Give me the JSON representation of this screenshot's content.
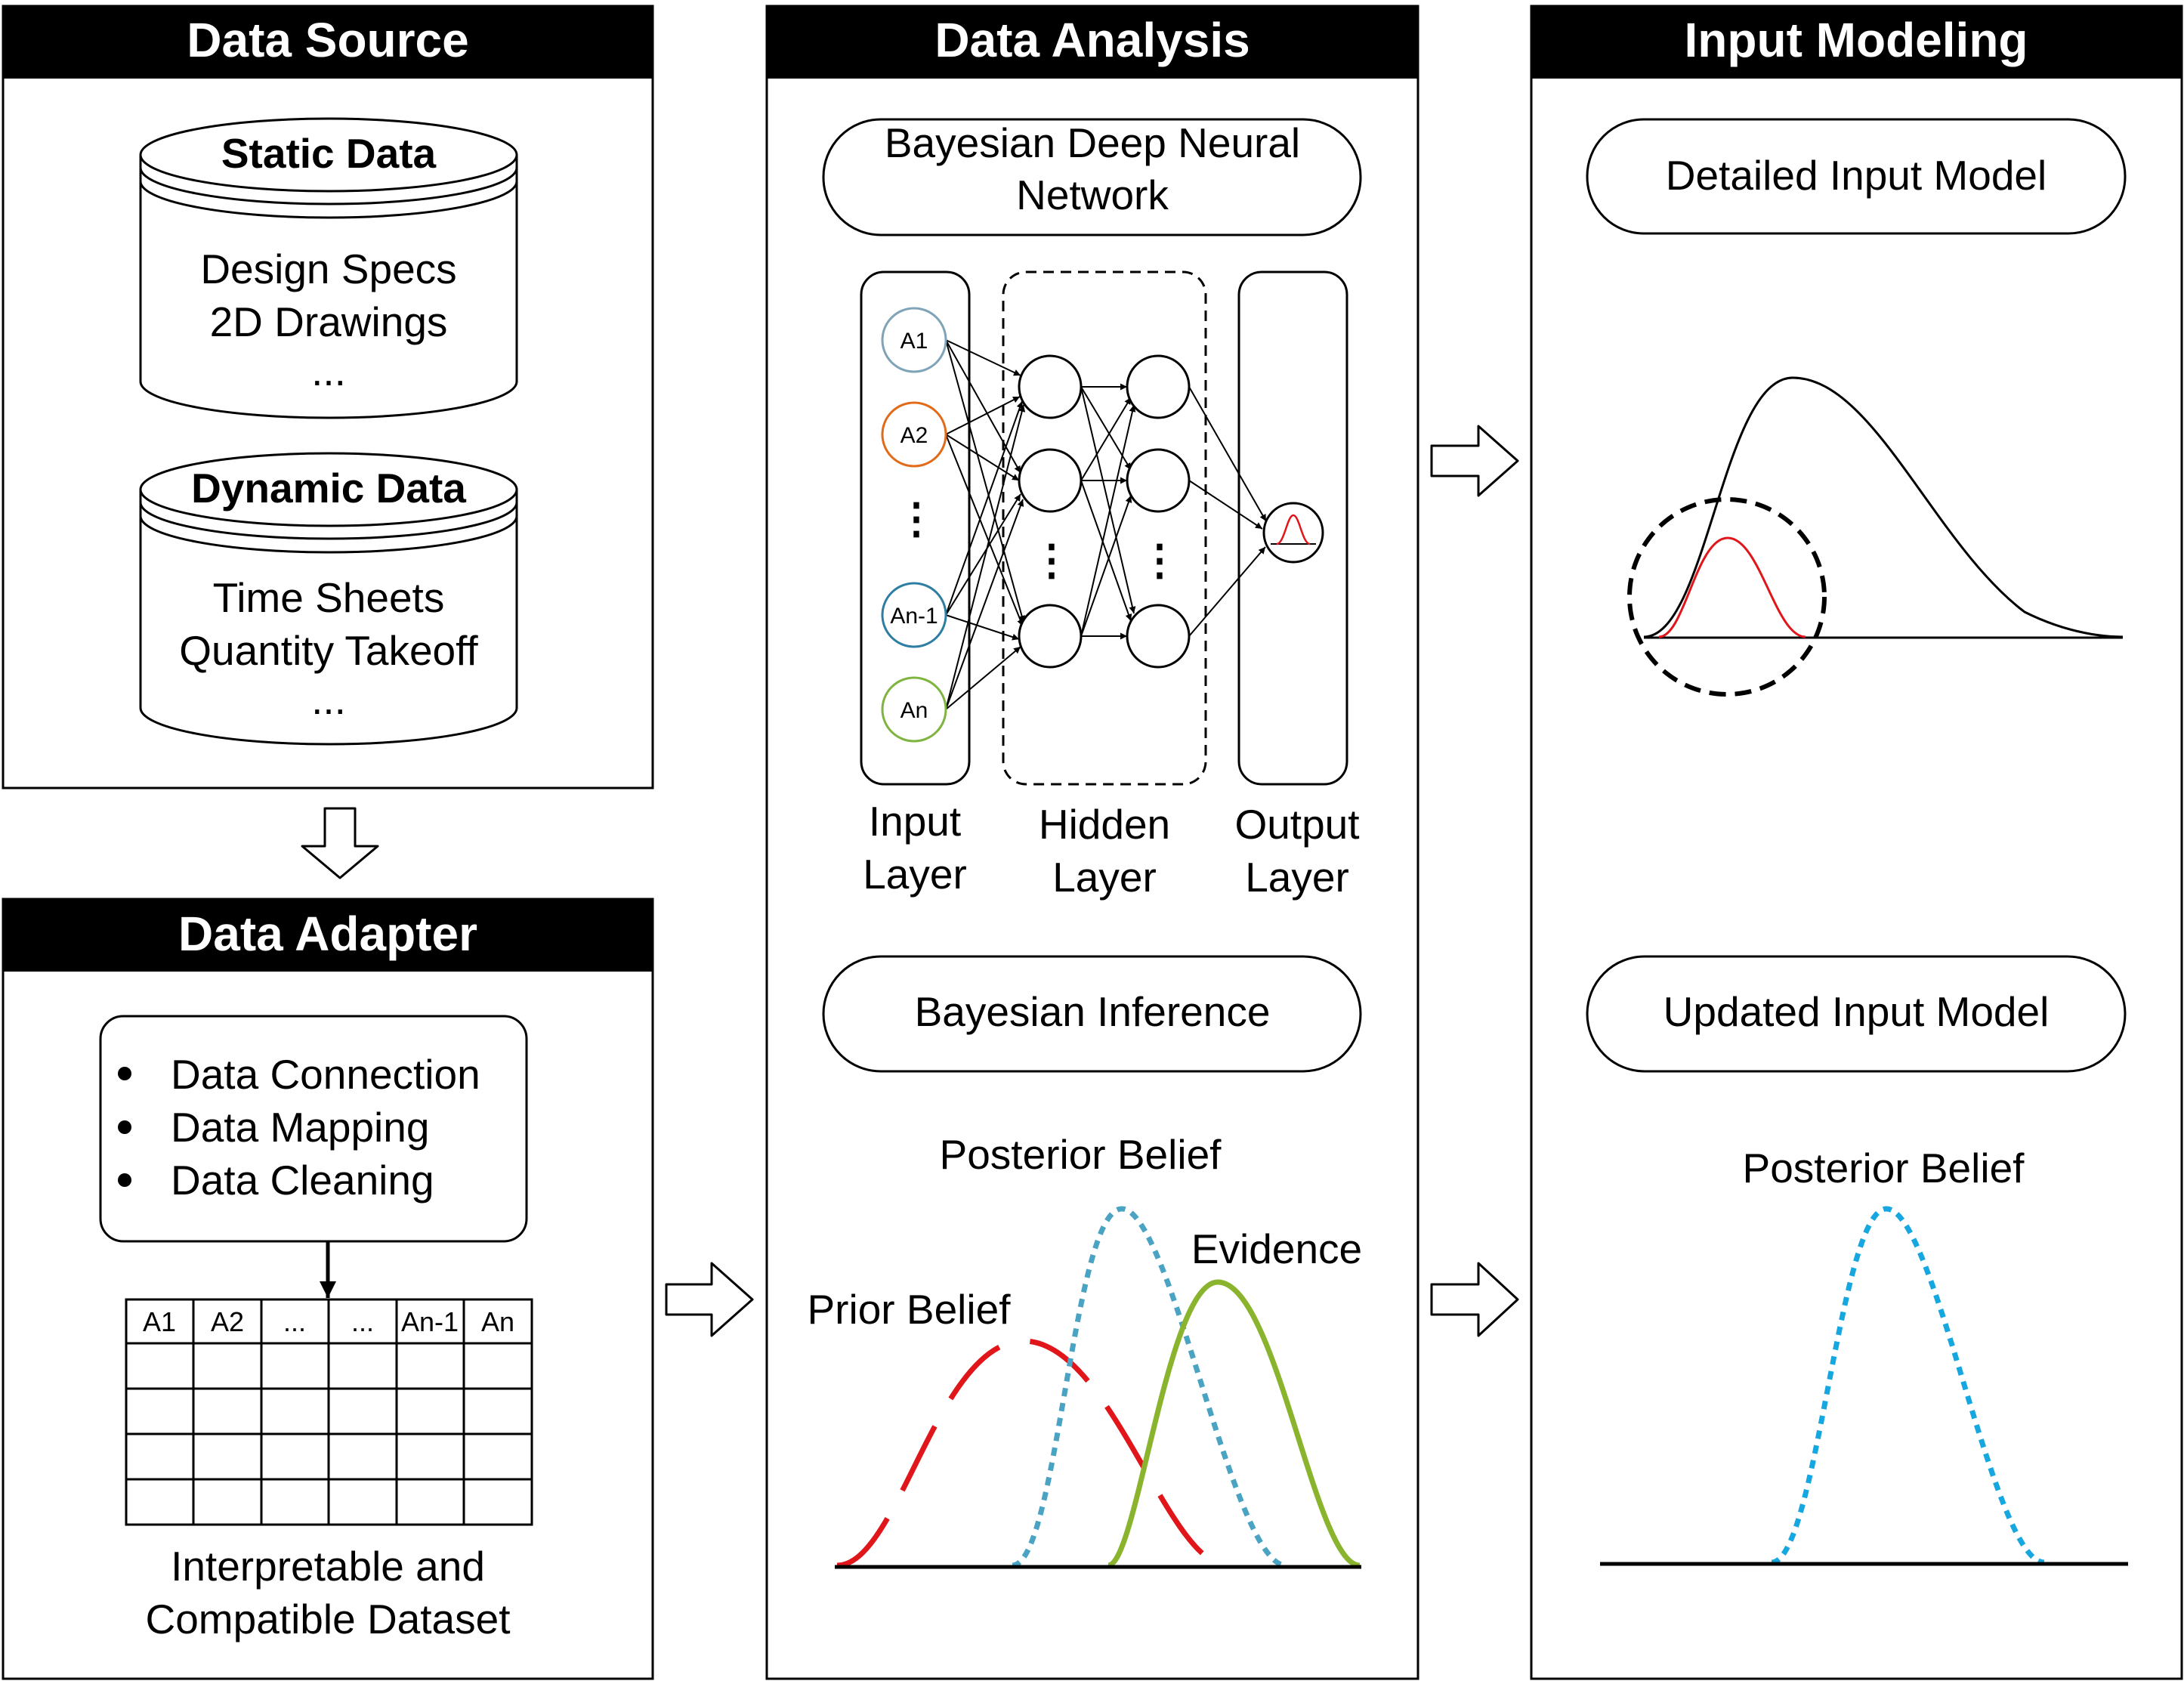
{
  "panels": {
    "data_source": {
      "title": "Data Source",
      "static_db": {
        "title": "Static Data",
        "items": [
          "Design Specs",
          "2D Drawings",
          "..."
        ]
      },
      "dynamic_db": {
        "title": "Dynamic Data",
        "items": [
          "Time Sheets",
          "Quantity Takeoff",
          "..."
        ]
      }
    },
    "data_adapter": {
      "title": "Data Adapter",
      "bullets": [
        "Data Connection",
        "Data Mapping",
        "Data Cleaning"
      ],
      "table_headers": [
        "A1",
        "A2",
        "...",
        "...",
        "An-1",
        "An"
      ],
      "caption": [
        "Interpretable and",
        "Compatible Dataset"
      ]
    },
    "data_analysis": {
      "title": "Data Analysis",
      "bdnn_box": [
        "Bayesian Deep Neural",
        "Network"
      ],
      "input_nodes": [
        "A1",
        "A2",
        "An-1",
        "An"
      ],
      "vdots": "⋮",
      "layers": {
        "input": [
          "Input",
          "Layer"
        ],
        "hidden": [
          "Hidden",
          "Layer"
        ],
        "output": [
          "Output",
          "Layer"
        ]
      },
      "inference_box": "Bayesian Inference",
      "curve_labels": {
        "posterior": "Posterior Belief",
        "evidence": "Evidence",
        "prior": "Prior Belief"
      }
    },
    "input_modeling": {
      "title": "Input Modeling",
      "detailed_box": "Detailed Input Model",
      "updated_box": "Updated Input Model",
      "posterior_label": "Posterior Belief"
    }
  },
  "colors": {
    "header_bg": "#000000",
    "node_a1": "#7fa4b8",
    "node_a2": "#e26b1a",
    "node_an1": "#2e7ea3",
    "node_an": "#7fb440",
    "prior": "#e0161b",
    "posterior_mid": "#4aa3c3",
    "posterior_right": "#17a7e0",
    "evidence": "#8ab42d",
    "red_small": "#e0161b"
  }
}
